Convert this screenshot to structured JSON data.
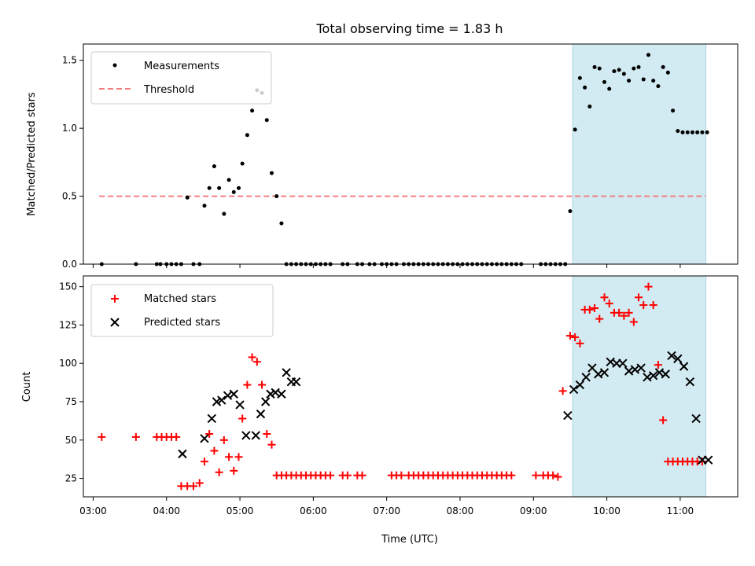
{
  "title": "Total observing time = 1.83 h",
  "colors": {
    "highlight": "#add8e6",
    "threshold": "#f08080",
    "measurements": "#000000",
    "matched": "#ff0000",
    "predicted": "#000000"
  },
  "top_legend": {
    "measurements": "Measurements",
    "threshold": "Threshold"
  },
  "bottom_legend": {
    "matched": "Matched stars",
    "predicted": "Predicted stars"
  },
  "xlabel": "Time (UTC)",
  "x_ticks": [
    "03:00",
    "04:00",
    "05:00",
    "06:00",
    "07:00",
    "08:00",
    "09:00",
    "10:00",
    "11:00"
  ],
  "chart_data": [
    {
      "type": "scatter",
      "ylabel": "Matched/Predicted stars",
      "xlim": [
        "02:52",
        "11:47"
      ],
      "ylim": [
        0,
        1.62
      ],
      "yticks": [
        "0.0",
        "0.5",
        "1.0",
        "1.5"
      ],
      "highlight_span": [
        "09:32",
        "11:21"
      ],
      "threshold": {
        "value": 0.5,
        "x_range": [
          "03:05",
          "11:21"
        ]
      },
      "series": [
        {
          "name": "Measurements",
          "x": [
            "03:07",
            "03:35",
            "03:52",
            "03:55",
            "04:00",
            "04:04",
            "04:08",
            "04:12",
            "04:17",
            "04:22",
            "04:27",
            "04:31",
            "04:35",
            "04:39",
            "04:43",
            "04:47",
            "04:51",
            "04:55",
            "04:59",
            "05:02",
            "05:06",
            "05:10",
            "05:14",
            "05:18",
            "05:22",
            "05:26",
            "05:30",
            "05:34",
            "05:38",
            "05:42",
            "05:46",
            "05:50",
            "05:54",
            "05:58",
            "06:02",
            "06:06",
            "06:10",
            "06:14",
            "06:24",
            "06:28",
            "06:36",
            "06:40",
            "06:46",
            "06:50",
            "06:56",
            "07:00",
            "07:04",
            "07:08",
            "07:14",
            "07:18",
            "07:22",
            "07:26",
            "07:30",
            "07:34",
            "07:38",
            "07:42",
            "07:46",
            "07:50",
            "07:54",
            "07:58",
            "08:02",
            "08:06",
            "08:10",
            "08:14",
            "08:18",
            "08:22",
            "08:26",
            "08:30",
            "08:34",
            "08:38",
            "08:42",
            "08:46",
            "08:50",
            "09:06",
            "09:10",
            "09:14",
            "09:18",
            "09:22",
            "09:26",
            "09:30",
            "09:34",
            "09:38",
            "09:42",
            "09:46",
            "09:50",
            "09:54",
            "09:58",
            "10:02",
            "10:06",
            "10:10",
            "10:14",
            "10:18",
            "10:22",
            "10:26",
            "10:30",
            "10:34",
            "10:38",
            "10:42",
            "10:46",
            "10:50",
            "10:54",
            "10:58",
            "11:02",
            "11:06",
            "11:10",
            "11:14",
            "11:18",
            "11:22"
          ],
          "y": [
            0,
            0,
            0,
            0,
            0,
            0,
            0,
            0,
            0.49,
            0,
            0,
            0.43,
            0.56,
            0.72,
            0.56,
            0.37,
            0.62,
            0.53,
            0.56,
            0.74,
            0.95,
            1.13,
            1.28,
            1.26,
            1.06,
            0.67,
            0.5,
            0.3,
            0,
            0,
            0,
            0,
            0,
            0,
            0,
            0,
            0,
            0,
            0,
            0,
            0,
            0,
            0,
            0,
            0,
            0,
            0,
            0,
            0,
            0,
            0,
            0,
            0,
            0,
            0,
            0,
            0,
            0,
            0,
            0,
            0,
            0,
            0,
            0,
            0,
            0,
            0,
            0,
            0,
            0,
            0,
            0,
            0,
            0,
            0,
            0,
            0,
            0,
            0,
            0.39,
            0.99,
            1.37,
            1.3,
            1.16,
            1.45,
            1.44,
            1.34,
            1.29,
            1.42,
            1.43,
            1.4,
            1.35,
            1.44,
            1.45,
            1.36,
            1.54,
            1.35,
            1.31,
            1.45,
            1.41,
            1.13,
            0.98,
            0.97,
            0.97,
            0.97,
            0.97,
            0.97,
            0.97
          ]
        }
      ]
    },
    {
      "type": "scatter",
      "ylabel": "Count",
      "xlim": [
        "02:52",
        "11:47"
      ],
      "ylim": [
        13,
        157
      ],
      "yticks": [
        "25",
        "50",
        "75",
        "100",
        "125",
        "150"
      ],
      "highlight_span": [
        "09:32",
        "11:21"
      ],
      "series": [
        {
          "name": "Matched stars",
          "x": [
            "03:07",
            "03:35",
            "03:52",
            "03:56",
            "04:00",
            "04:04",
            "04:08",
            "04:12",
            "04:17",
            "04:22",
            "04:27",
            "04:31",
            "04:35",
            "04:39",
            "04:43",
            "04:47",
            "04:51",
            "04:55",
            "04:59",
            "05:02",
            "05:06",
            "05:10",
            "05:14",
            "05:18",
            "05:22",
            "05:26",
            "05:30",
            "05:34",
            "05:38",
            "05:42",
            "05:46",
            "05:50",
            "05:54",
            "05:58",
            "06:02",
            "06:06",
            "06:10",
            "06:14",
            "06:24",
            "06:28",
            "06:36",
            "06:40",
            "07:04",
            "07:08",
            "07:12",
            "07:18",
            "07:22",
            "07:26",
            "07:30",
            "07:34",
            "07:38",
            "07:42",
            "07:46",
            "07:50",
            "07:54",
            "07:58",
            "08:02",
            "08:06",
            "08:10",
            "08:14",
            "08:18",
            "08:22",
            "08:26",
            "08:30",
            "08:34",
            "08:38",
            "08:42",
            "09:02",
            "09:08",
            "09:12",
            "09:16",
            "09:20",
            "09:24",
            "09:30",
            "09:34",
            "09:38",
            "09:42",
            "09:46",
            "09:50",
            "09:54",
            "09:58",
            "10:02",
            "10:06",
            "10:10",
            "10:14",
            "10:18",
            "10:22",
            "10:26",
            "10:30",
            "10:34",
            "10:38",
            "10:42",
            "10:46",
            "10:50",
            "10:54",
            "10:58",
            "11:02",
            "11:06",
            "11:10",
            "11:14",
            "11:18"
          ],
          "y": [
            52,
            52,
            52,
            52,
            52,
            52,
            52,
            20,
            20,
            20,
            22,
            36,
            54,
            43,
            29,
            50,
            39,
            30,
            39,
            64,
            86,
            104,
            101,
            86,
            54,
            47,
            27,
            27,
            27,
            27,
            27,
            27,
            27,
            27,
            27,
            27,
            27,
            27,
            27,
            27,
            27,
            27,
            27,
            27,
            27,
            27,
            27,
            27,
            27,
            27,
            27,
            27,
            27,
            27,
            27,
            27,
            27,
            27,
            27,
            27,
            27,
            27,
            27,
            27,
            27,
            27,
            27,
            27,
            27,
            27,
            27,
            26,
            82,
            118,
            117,
            113,
            135,
            135,
            136,
            129,
            143,
            139,
            133,
            133,
            131,
            133,
            127,
            143,
            138,
            150,
            138,
            99,
            63,
            36,
            36,
            36,
            36,
            36,
            36,
            36,
            36
          ]
        },
        {
          "name": "Predicted stars",
          "x": [
            "04:13",
            "04:31",
            "04:37",
            "04:41",
            "04:45",
            "04:50",
            "04:55",
            "05:00",
            "05:05",
            "05:13",
            "05:17",
            "05:21",
            "05:25",
            "05:29",
            "05:34",
            "05:38",
            "05:42",
            "05:46",
            "09:28",
            "09:33",
            "09:38",
            "09:43",
            "09:48",
            "09:53",
            "09:58",
            "10:03",
            "10:08",
            "10:13",
            "10:18",
            "10:23",
            "10:28",
            "10:33",
            "10:38",
            "10:43",
            "10:48",
            "10:53",
            "10:58",
            "11:03",
            "11:08",
            "11:13",
            "11:18",
            "11:23"
          ],
          "y": [
            41,
            51,
            64,
            75,
            76,
            79,
            80,
            73,
            53,
            53,
            67,
            75,
            80,
            81,
            80,
            94,
            88,
            88,
            66,
            83,
            86,
            91,
            97,
            93,
            94,
            101,
            100,
            100,
            95,
            96,
            97,
            91,
            92,
            94,
            93,
            105,
            103,
            98,
            88,
            64,
            37,
            37
          ]
        }
      ]
    }
  ]
}
